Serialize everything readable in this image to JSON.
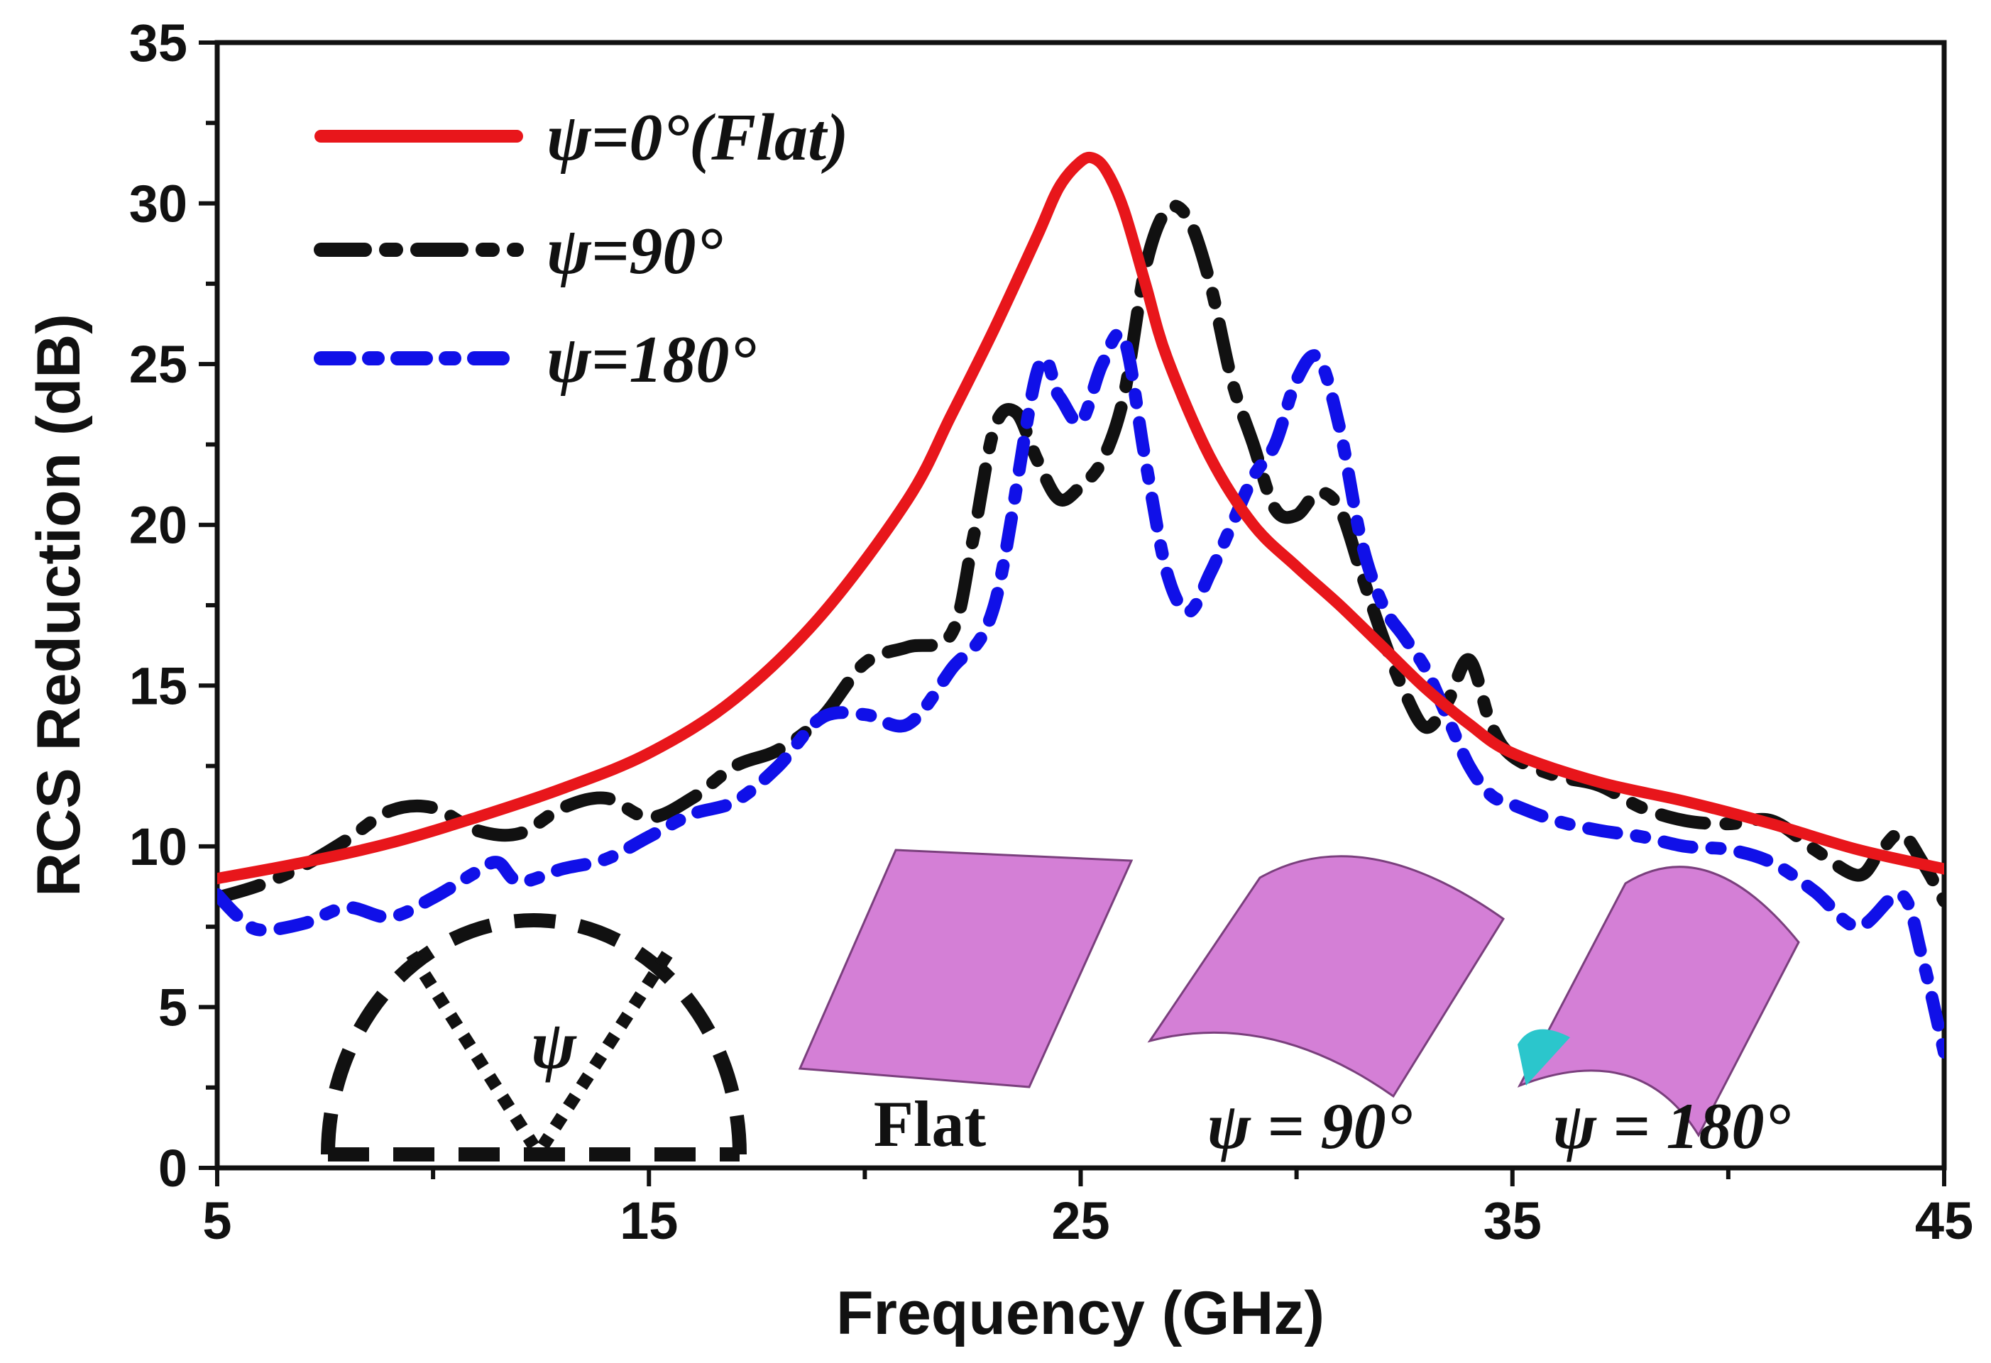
{
  "chart_data": {
    "type": "line",
    "title": "",
    "xlabel": "Frequency (GHz)",
    "ylabel": "RCS Reduction (dB)",
    "xlim": [
      5,
      45
    ],
    "ylim": [
      0,
      35
    ],
    "x_ticks": [
      5,
      15,
      25,
      35,
      45
    ],
    "x_tick_labels": [
      "5",
      "15",
      "25",
      "35",
      "45"
    ],
    "y_ticks": [
      0,
      5,
      10,
      15,
      20,
      25,
      30,
      35
    ],
    "y_tick_labels": [
      "0",
      "5",
      "10",
      "15",
      "20",
      "25",
      "30",
      "35"
    ],
    "grid": false,
    "legend_position": "top-left",
    "series": [
      {
        "name": "ψ=0°(Flat)",
        "color": "#e8161b",
        "style": "solid",
        "x": [
          5,
          7,
          9,
          11,
          13,
          15,
          17,
          19,
          21,
          22,
          23,
          24,
          24.5,
          25,
          25.3,
          25.6,
          26,
          26.5,
          27,
          28,
          29,
          30,
          31,
          32,
          33,
          34,
          35,
          37,
          39,
          41,
          43,
          45
        ],
        "y": [
          9.0,
          9.5,
          10.1,
          10.9,
          11.8,
          12.9,
          14.6,
          17.2,
          20.8,
          23.4,
          26.1,
          29.0,
          30.5,
          31.3,
          31.4,
          31.0,
          29.8,
          27.5,
          25.2,
          22.1,
          20.0,
          18.7,
          17.5,
          16.2,
          14.9,
          13.8,
          12.9,
          12.0,
          11.4,
          10.7,
          9.9,
          9.3
        ]
      },
      {
        "name": "ψ=90°",
        "color": "#111111",
        "style": "dashed",
        "x": [
          5,
          6,
          7,
          8,
          9,
          10,
          11,
          12,
          13,
          14,
          15,
          16,
          17,
          18,
          19,
          20,
          21,
          22,
          22.5,
          23,
          23.5,
          24,
          24.5,
          25,
          25.5,
          26,
          26.5,
          27,
          27.5,
          28,
          28.5,
          29,
          29.5,
          30,
          30.5,
          31,
          31.5,
          32,
          32.5,
          33,
          33.5,
          34,
          34.5,
          35,
          36,
          37,
          38,
          39,
          40,
          41,
          42,
          43,
          43.5,
          44,
          44.5,
          45
        ],
        "y": [
          8.4,
          8.8,
          9.4,
          10.2,
          11.1,
          11.2,
          10.5,
          10.4,
          11.2,
          11.5,
          10.9,
          11.5,
          12.5,
          13.0,
          14.0,
          15.7,
          16.2,
          16.6,
          19.5,
          23.0,
          23.5,
          22.0,
          20.8,
          21.2,
          22.0,
          24.0,
          28.0,
          29.8,
          29.5,
          27.5,
          24.5,
          22.5,
          20.5,
          20.3,
          21.0,
          20.5,
          18.5,
          16.5,
          14.8,
          13.7,
          14.5,
          15.8,
          13.8,
          12.8,
          12.2,
          11.9,
          11.2,
          10.8,
          10.7,
          10.8,
          9.9,
          9.1,
          9.8,
          10.4,
          9.5,
          8.3
        ]
      },
      {
        "name": "ψ=180°",
        "color": "#1010e8",
        "style": "dash-dot",
        "x": [
          5,
          5.5,
          6,
          7,
          8,
          9,
          10,
          11,
          11.5,
          12,
          13,
          14,
          15,
          16,
          17,
          18,
          19,
          20,
          21,
          22,
          23,
          24,
          24.5,
          25,
          25.5,
          26,
          26.5,
          27,
          27.5,
          28,
          28.5,
          29,
          29.5,
          30,
          30.5,
          31,
          31.5,
          32,
          32.5,
          33,
          33.5,
          34,
          34.5,
          35,
          36,
          37,
          38,
          39,
          40,
          41,
          42,
          43,
          44,
          44.5,
          45
        ],
        "y": [
          8.5,
          7.8,
          7.4,
          7.6,
          8.1,
          7.8,
          8.4,
          9.2,
          9.5,
          8.9,
          9.3,
          9.6,
          10.3,
          11.0,
          11.4,
          12.5,
          14.0,
          14.1,
          13.8,
          15.5,
          17.5,
          24.8,
          24.0,
          23.2,
          25.0,
          25.8,
          22.0,
          18.5,
          17.3,
          18.5,
          20.0,
          21.5,
          22.5,
          24.5,
          25.2,
          23.0,
          19.5,
          17.5,
          16.5,
          15.5,
          14.0,
          12.5,
          11.6,
          11.3,
          10.8,
          10.5,
          10.3,
          10.0,
          9.9,
          9.5,
          8.6,
          7.5,
          8.5,
          6.5,
          3.6
        ]
      }
    ],
    "annotations": [
      "ψ",
      "Flat",
      "ψ = 90°",
      "ψ = 180°"
    ]
  }
}
